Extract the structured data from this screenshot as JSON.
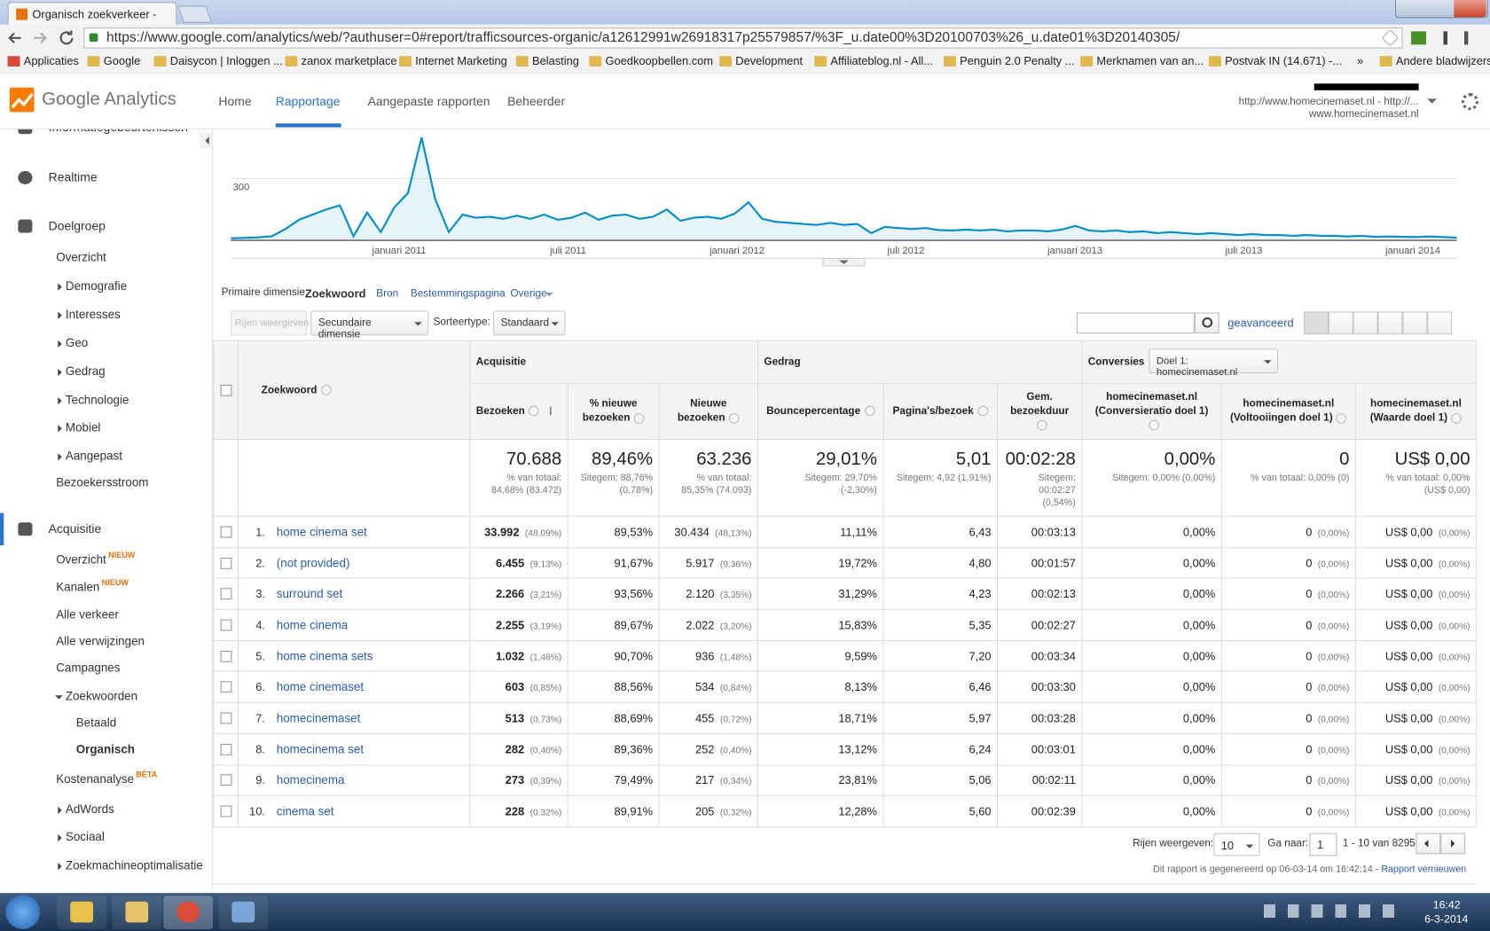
{
  "browser": {
    "tab_title": "Organisch zoekverkeer - G",
    "url": "https://www.google.com/analytics/web/?authuser=0#report/trafficsources-organic/a12612991w26918317p25579857/%3F_u.date00%3D20100703%26_u.date01%3D20140305/",
    "bookmarks": [
      "Applicaties",
      "Google",
      "Daisycon | Inloggen ...",
      "zanox marketplace",
      "Internet Marketing",
      "Belasting",
      "Goedkoopbellen.com",
      "Development",
      "Affiliateblog.nl - All...",
      "Penguin 2.0 Penalty ...",
      "Merknamen van an...",
      "Postvak IN (14.671) -...",
      "»",
      "Andere bladwijzers"
    ]
  },
  "header": {
    "logo": "Google Analytics",
    "nav": [
      "Home",
      "Rapportage",
      "Aangepaste rapporten",
      "Beheerder"
    ],
    "account_line1": "http://www.homecinemaset.nl - http://...",
    "account_line2": "www.homecinemaset.nl"
  },
  "sidebar": [
    {
      "label": "Informatiegebeurtenissen"
    },
    {
      "label": "Realtime"
    },
    {
      "label": "Doelgroep"
    },
    {
      "label": "Overzicht"
    },
    {
      "label": "Demografie"
    },
    {
      "label": "Interesses"
    },
    {
      "label": "Geo"
    },
    {
      "label": "Gedrag"
    },
    {
      "label": "Technologie"
    },
    {
      "label": "Mobiel"
    },
    {
      "label": "Aangepast"
    },
    {
      "label": "Bezoekersstroom"
    },
    {
      "label": "Acquisitie"
    },
    {
      "label": "Overzicht",
      "badge": "NIEUW"
    },
    {
      "label": "Kanalen",
      "badge": "NIEUW"
    },
    {
      "label": "Alle verkeer"
    },
    {
      "label": "Alle verwijzingen"
    },
    {
      "label": "Campagnes"
    },
    {
      "label": "Zoekwoorden"
    },
    {
      "label": "Betaald"
    },
    {
      "label": "Organisch"
    },
    {
      "label": "Kostenanalyse",
      "badge": "BÈTA"
    },
    {
      "label": "AdWords"
    },
    {
      "label": "Sociaal"
    },
    {
      "label": "Zoekmachineoptimalisatie"
    }
  ],
  "chart_data": {
    "type": "line",
    "x_labels": [
      "januari 2011",
      "juli 2011",
      "januari 2012",
      "juli 2012",
      "januari 2013",
      "juli 2013",
      "januari 2014"
    ],
    "values": [
      10,
      12,
      15,
      20,
      55,
      100,
      125,
      150,
      170,
      20,
      135,
      40,
      160,
      230,
      500,
      200,
      40,
      125,
      110,
      115,
      105,
      120,
      105,
      125,
      100,
      110,
      135,
      100,
      120,
      125,
      105,
      115,
      150,
      95,
      110,
      115,
      105,
      130,
      185,
      105,
      90,
      85,
      80,
      75,
      85,
      75,
      80,
      35,
      65,
      60,
      55,
      60,
      50,
      48,
      52,
      48,
      52,
      44,
      48,
      48,
      44,
      52,
      70,
      48,
      44,
      48,
      40,
      44,
      35,
      40,
      35,
      30,
      35,
      30,
      26,
      30,
      26,
      26,
      22,
      26,
      22,
      22,
      19,
      22,
      17,
      19,
      17,
      16,
      19,
      16,
      13
    ],
    "ylim": [
      0,
      600
    ],
    "yticks": [
      300
    ],
    "color": "#058dc7",
    "area": true
  },
  "dimensions": {
    "label": "Primaire dimensie:",
    "active": "Zoekwoord",
    "options": [
      "Bron",
      "Bestemmingspagina",
      "Overige"
    ]
  },
  "toolbar": {
    "rows_button": "Rijen weergeven",
    "secondary": "Secundaire dimensie",
    "sort_label": "Sorteertype:",
    "sort_value": "Standaard",
    "advanced": "geavanceerd"
  },
  "table": {
    "keyword_header": "Zoekwoord",
    "groups": [
      "Acquisitie",
      "Gedrag",
      "Conversies"
    ],
    "goal_select": "Doel 1: homecinemaset.nl",
    "columns": [
      "Bezoeken",
      "% nieuwe bezoeken",
      "Nieuwe bezoeken",
      "Bouncepercentage",
      "Pagina's/bezoek",
      "Gem. bezoekduur",
      "homecinemaset.nl (Conversieratio doel 1)",
      "homecinemaset.nl (Voltooiingen doel 1)",
      "homecinemaset.nl (Waarde doel 1)"
    ],
    "totals": [
      {
        "main": "70.688",
        "sub": "% van totaal: 84,68% (83.472)"
      },
      {
        "main": "89,46%",
        "sub": "Sitegem: 88,76% (0,78%)"
      },
      {
        "main": "63.236",
        "sub": "% van totaal: 85,35% (74.093)"
      },
      {
        "main": "29,01%",
        "sub": "Sitegem: 29,70% (-2,30%)"
      },
      {
        "main": "5,01",
        "sub": "Sitegem: 4,92 (1,91%)"
      },
      {
        "main": "00:02:28",
        "sub": "Sitegem: 00:02:27 (0,54%)"
      },
      {
        "main": "0,00%",
        "sub": "Sitegem: 0,00% (0,00%)"
      },
      {
        "main": "0",
        "sub": "% van totaal: 0,00% (0)"
      },
      {
        "main": "US$ 0,00",
        "sub": "% van totaal: 0,00% (US$ 0,00)"
      }
    ],
    "rows": [
      {
        "rank": "1.",
        "keyword": "home cinema set",
        "visits": "33.992",
        "visits_pct": "(48,09%)",
        "new_pct": "89,53%",
        "new_visits": "30.434",
        "new_visits_pct": "(48,13%)",
        "bounce": "11,11%",
        "pages": "6,43",
        "duration": "00:03:13",
        "conv_rate": "0,00%",
        "completions": "0",
        "completions_pct": "(0,00%)",
        "value": "US$ 0,00",
        "value_pct": "(0,00%)"
      },
      {
        "rank": "2.",
        "keyword": "(not provided)",
        "visits": "6.455",
        "visits_pct": "(9,13%)",
        "new_pct": "91,67%",
        "new_visits": "5.917",
        "new_visits_pct": "(9,36%)",
        "bounce": "19,72%",
        "pages": "4,80",
        "duration": "00:01:57",
        "conv_rate": "0,00%",
        "completions": "0",
        "completions_pct": "(0,00%)",
        "value": "US$ 0,00",
        "value_pct": "(0,00%)"
      },
      {
        "rank": "3.",
        "keyword": "surround set",
        "visits": "2.266",
        "visits_pct": "(3,21%)",
        "new_pct": "93,56%",
        "new_visits": "2.120",
        "new_visits_pct": "(3,35%)",
        "bounce": "31,29%",
        "pages": "4,23",
        "duration": "00:02:13",
        "conv_rate": "0,00%",
        "completions": "0",
        "completions_pct": "(0,00%)",
        "value": "US$ 0,00",
        "value_pct": "(0,00%)"
      },
      {
        "rank": "4.",
        "keyword": "home cinema",
        "visits": "2.255",
        "visits_pct": "(3,19%)",
        "new_pct": "89,67%",
        "new_visits": "2.022",
        "new_visits_pct": "(3,20%)",
        "bounce": "15,83%",
        "pages": "5,35",
        "duration": "00:02:27",
        "conv_rate": "0,00%",
        "completions": "0",
        "completions_pct": "(0,00%)",
        "value": "US$ 0,00",
        "value_pct": "(0,00%)"
      },
      {
        "rank": "5.",
        "keyword": "home cinema sets",
        "visits": "1.032",
        "visits_pct": "(1,46%)",
        "new_pct": "90,70%",
        "new_visits": "936",
        "new_visits_pct": "(1,48%)",
        "bounce": "9,59%",
        "pages": "7,20",
        "duration": "00:03:34",
        "conv_rate": "0,00%",
        "completions": "0",
        "completions_pct": "(0,00%)",
        "value": "US$ 0,00",
        "value_pct": "(0,00%)"
      },
      {
        "rank": "6.",
        "keyword": "home cinemaset",
        "visits": "603",
        "visits_pct": "(0,85%)",
        "new_pct": "88,56%",
        "new_visits": "534",
        "new_visits_pct": "(0,84%)",
        "bounce": "8,13%",
        "pages": "6,46",
        "duration": "00:03:30",
        "conv_rate": "0,00%",
        "completions": "0",
        "completions_pct": "(0,00%)",
        "value": "US$ 0,00",
        "value_pct": "(0,00%)"
      },
      {
        "rank": "7.",
        "keyword": "homecinemaset",
        "visits": "513",
        "visits_pct": "(0,73%)",
        "new_pct": "88,69%",
        "new_visits": "455",
        "new_visits_pct": "(0,72%)",
        "bounce": "18,71%",
        "pages": "5,97",
        "duration": "00:03:28",
        "conv_rate": "0,00%",
        "completions": "0",
        "completions_pct": "(0,00%)",
        "value": "US$ 0,00",
        "value_pct": "(0,00%)"
      },
      {
        "rank": "8.",
        "keyword": "homecinema set",
        "visits": "282",
        "visits_pct": "(0,40%)",
        "new_pct": "89,36%",
        "new_visits": "252",
        "new_visits_pct": "(0,40%)",
        "bounce": "13,12%",
        "pages": "6,24",
        "duration": "00:03:01",
        "conv_rate": "0,00%",
        "completions": "0",
        "completions_pct": "(0,00%)",
        "value": "US$ 0,00",
        "value_pct": "(0,00%)"
      },
      {
        "rank": "9.",
        "keyword": "homecinema",
        "visits": "273",
        "visits_pct": "(0,39%)",
        "new_pct": "79,49%",
        "new_visits": "217",
        "new_visits_pct": "(0,34%)",
        "bounce": "23,81%",
        "pages": "5,06",
        "duration": "00:02:11",
        "conv_rate": "0,00%",
        "completions": "0",
        "completions_pct": "(0,00%)",
        "value": "US$ 0,00",
        "value_pct": "(0,00%)"
      },
      {
        "rank": "10.",
        "keyword": "cinema set",
        "visits": "228",
        "visits_pct": "(0,32%)",
        "new_pct": "89,91%",
        "new_visits": "205",
        "new_visits_pct": "(0,32%)",
        "bounce": "12,28%",
        "pages": "5,60",
        "duration": "00:02:39",
        "conv_rate": "0,00%",
        "completions": "0",
        "completions_pct": "(0,00%)",
        "value": "US$ 0,00",
        "value_pct": "(0,00%)"
      }
    ]
  },
  "footer": {
    "rows_label": "Rijen weergeven:",
    "rows_value": "10",
    "goto_label": "Ga naar:",
    "goto_value": "1",
    "range": "1 - 10 van 8295",
    "generated": "Dit rapport is gegenereerd op 06-03-14 om 16:42:14 - ",
    "refresh": "Rapport vernieuwen"
  },
  "taskbar": {
    "time": "16:42",
    "date": "6-3-2014"
  }
}
